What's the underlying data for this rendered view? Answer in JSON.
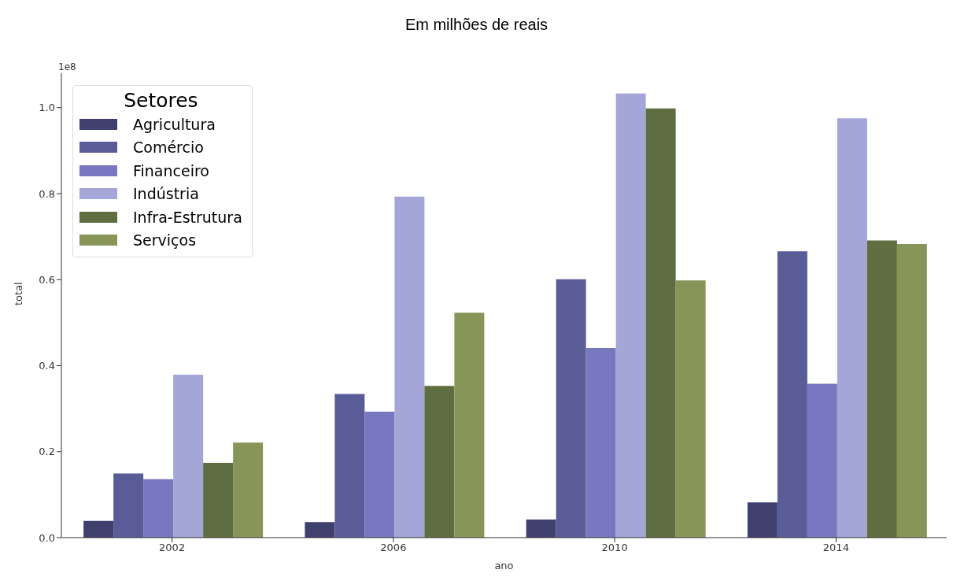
{
  "chart_data": {
    "type": "bar",
    "title": "Em milhões de reais",
    "xlabel": "ano",
    "ylabel": "total",
    "legend_title": "Setores",
    "annotations": [
      "1e8"
    ],
    "categories": [
      "2002",
      "2006",
      "2010",
      "2014"
    ],
    "series": [
      {
        "name": "Agricultura",
        "color": "#40406f",
        "values": [
          0.039,
          0.036,
          0.042,
          0.082
        ]
      },
      {
        "name": "Comércio",
        "color": "#5a5c98",
        "values": [
          0.149,
          0.334,
          0.601,
          0.666
        ]
      },
      {
        "name": "Financeiro",
        "color": "#7878c0",
        "values": [
          0.136,
          0.293,
          0.441,
          0.358
        ]
      },
      {
        "name": "Indústria",
        "color": "#a3a6d6",
        "values": [
          0.379,
          0.793,
          1.033,
          0.975
        ]
      },
      {
        "name": "Infra-Estrutura",
        "color": "#5f6e40",
        "values": [
          0.174,
          0.353,
          0.998,
          0.691
        ]
      },
      {
        "name": "Serviços",
        "color": "#889558",
        "values": [
          0.221,
          0.523,
          0.598,
          0.683
        ]
      }
    ],
    "ylim": [
      0,
      1.08
    ],
    "yticks": [
      {
        "value": 0,
        "label": "0.0"
      },
      0.2,
      0.4,
      0.6,
      0.8,
      {
        "value": 1,
        "label": "1.0"
      }
    ],
    "grid": false,
    "legend": "top left"
  }
}
